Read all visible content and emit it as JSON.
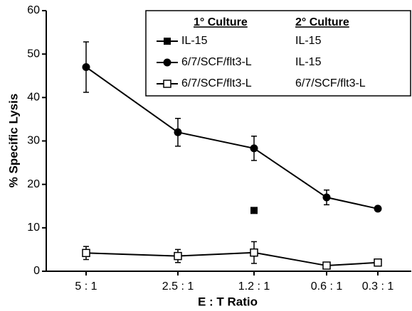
{
  "chart_data": {
    "type": "line",
    "x_label": "E : T Ratio",
    "y_label": "% Specific Lysis",
    "legend_headers": [
      "1° Culture",
      "2° Culture"
    ],
    "categories": [
      "5 : 1",
      "2.5 : 1",
      "1.2 : 1",
      "0.6 : 1",
      "0.3 : 1"
    ],
    "ylim": [
      0,
      60
    ],
    "yticks": [
      0,
      10,
      20,
      30,
      40,
      50,
      60
    ],
    "legend": "upper right",
    "series": [
      {
        "name": "IL-15",
        "secondary": "IL-15",
        "marker": "filled-square",
        "color": "#000000",
        "values": [
          null,
          null,
          14,
          null,
          null
        ]
      },
      {
        "name": "6/7/SCF/flt3-L",
        "secondary": "IL-15",
        "marker": "filled-circle",
        "color": "#000000",
        "values": [
          47,
          32,
          28.3,
          17,
          14.4
        ],
        "errors": [
          5.8,
          3.2,
          2.8,
          1.7,
          0.4
        ]
      },
      {
        "name": "6/7/SCF/flt3-L",
        "secondary": "6/7/SCF/flt3-L",
        "marker": "open-square",
        "color": "#000000",
        "values": [
          4.2,
          3.5,
          4.3,
          1.3,
          2
        ],
        "errors": [
          1.5,
          1.5,
          2.5,
          0.5,
          0.5
        ]
      }
    ]
  }
}
